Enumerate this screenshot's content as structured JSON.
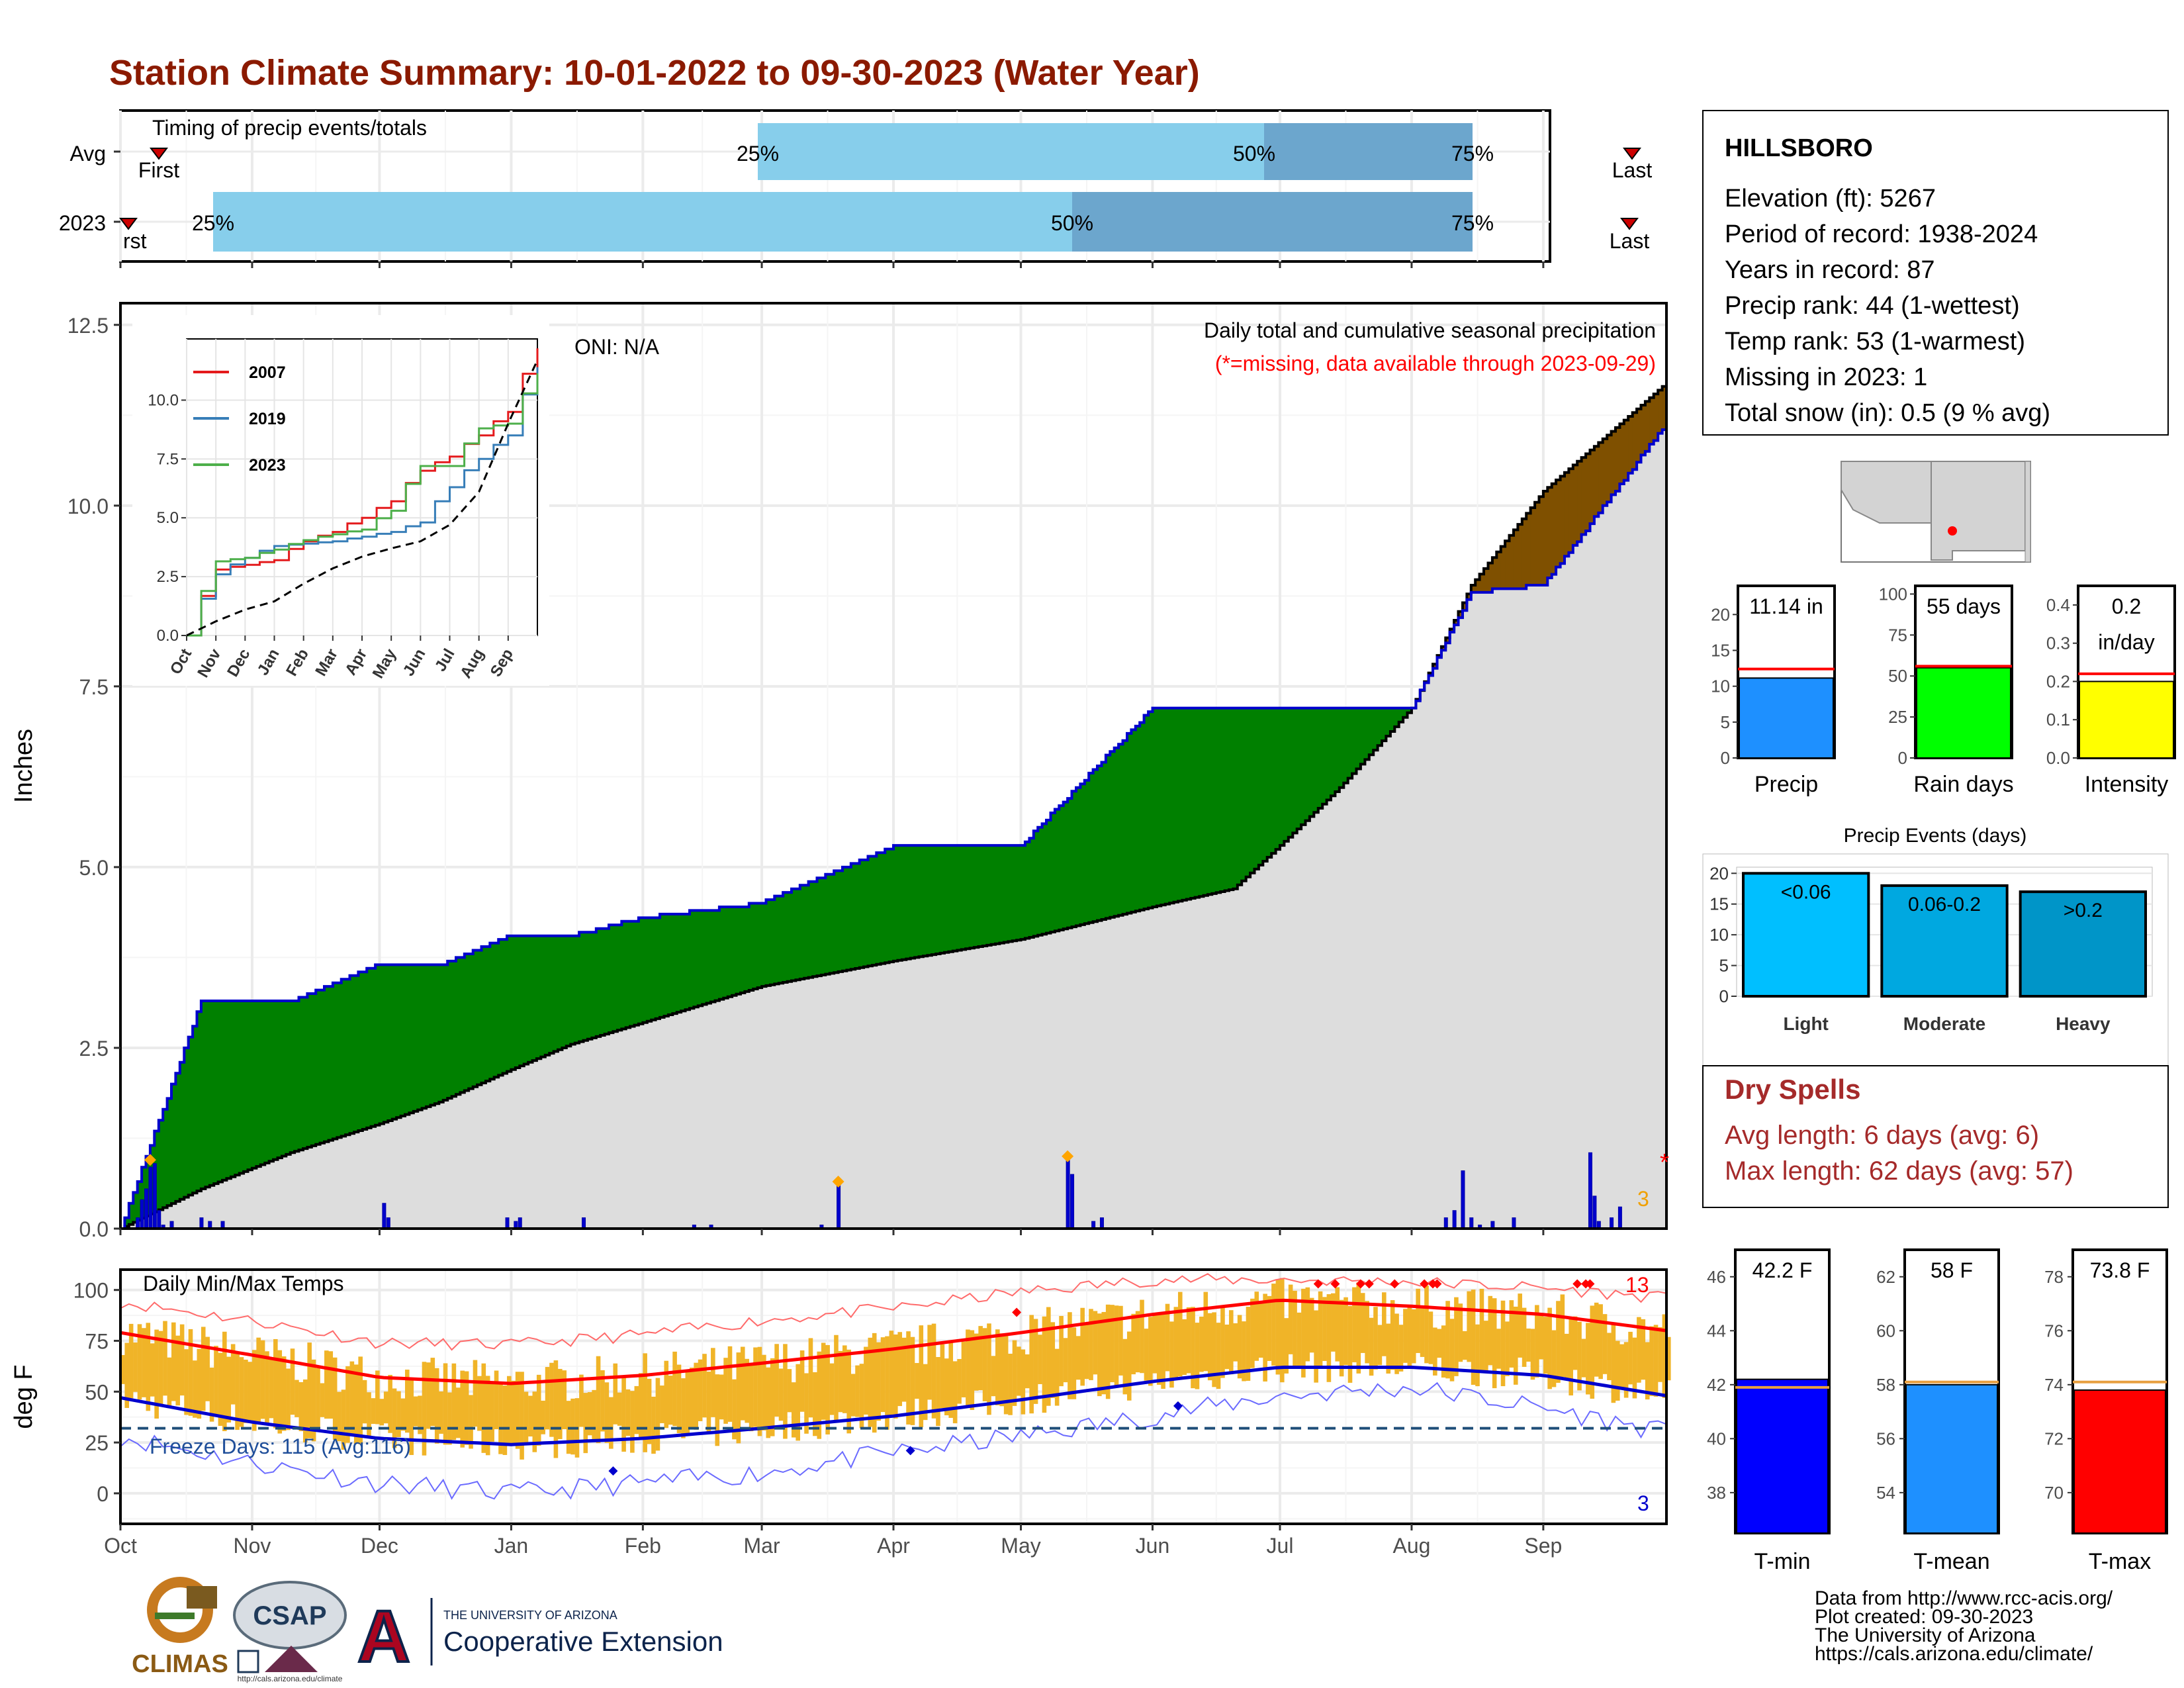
{
  "title": "Station Climate Summary: 10-01-2022 to 09-30-2023 (Water Year)",
  "colors": {
    "title": "#8B1A00",
    "lightblue": "#87CEEB",
    "midblue": "#6CA6CD",
    "green": "#008000",
    "brown": "#7F5000",
    "gray_fill": "#DDDDDD",
    "navy": "#0000CD",
    "gold": "#F0B428",
    "red": "#FF0000",
    "lime": "#00FF00",
    "yellow": "#FFFF00",
    "dodger": "#1E90FF",
    "deepsky": "#00BFFF",
    "darkred": "#A52A2A"
  },
  "timing": {
    "label": "Timing of precip events/totals",
    "rows": [
      "Avg",
      "2023"
    ],
    "first_label": "First",
    "last_label": "Last",
    "first_label_cut": "rst",
    "pct_labels": [
      "25%",
      "50%",
      "75%"
    ]
  },
  "months": [
    "Oct",
    "Nov",
    "Dec",
    "Jan",
    "Feb",
    "Mar",
    "Apr",
    "May",
    "Jun",
    "Jul",
    "Aug",
    "Sep"
  ],
  "precip": {
    "ylabel": "Inches",
    "yticks": [
      "0.0",
      "2.5",
      "5.0",
      "7.5",
      "10.0",
      "12.5"
    ],
    "ylim": [
      0,
      12.8
    ],
    "note1": "Daily total and cumulative seasonal precipitation",
    "note2": "(*=missing, data available through 2023-09-29)",
    "oni": "ONI: N/A",
    "missing_mark": "*",
    "event_count": "3"
  },
  "temps": {
    "ylabel": "deg F",
    "label": "Daily Min/Max Temps",
    "yticks": [
      "0",
      "25",
      "50",
      "75",
      "100"
    ],
    "ylim": [
      -15,
      110
    ],
    "freeze": "Freeze Days: 115 (Avg:116)",
    "max_count": "13",
    "min_count": "3"
  },
  "inset": {
    "yticks": [
      "0.0",
      "2.5",
      "5.0",
      "7.5",
      "10.0"
    ],
    "months": [
      "Oct",
      "Nov",
      "Dec",
      "Jan",
      "Feb",
      "Mar",
      "Apr",
      "May",
      "Jun",
      "Jul",
      "Aug",
      "Sep"
    ],
    "legend": [
      "2007",
      "2019",
      "2023"
    ],
    "colors": [
      "#E41A1C",
      "#377EB8",
      "#4DAF4A"
    ]
  },
  "station": {
    "name": "HILLSBORO",
    "lines": [
      "Elevation (ft): 5267",
      "Period of record: 1938-2024",
      "Years in record: 87",
      "Precip rank: 44 (1-wettest)",
      "Temp rank: 53 (1-warmest)",
      "Missing in 2023: 1",
      "Total snow (in): 0.5 (9 % avg)"
    ]
  },
  "minibars": [
    {
      "label": "Precip",
      "value_label": "11.14 in",
      "yticks": [
        "0",
        "5",
        "10",
        "15",
        "20"
      ]
    },
    {
      "label": "Rain days",
      "value_label": "55 days",
      "yticks": [
        "0",
        "25",
        "50",
        "75",
        "100"
      ]
    },
    {
      "label": "Intensity",
      "value_label": "0.2",
      "value_label2": "in/day",
      "yticks": [
        "0.0",
        "0.1",
        "0.2",
        "0.3",
        "0.4"
      ]
    }
  ],
  "events": {
    "title": "Precip Events (days)",
    "categories": [
      "Light",
      "Moderate",
      "Heavy"
    ],
    "bar_labels": [
      "<0.06",
      "0.06-0.2",
      ">0.2"
    ],
    "yticks": [
      "0",
      "5",
      "10",
      "15",
      "20"
    ]
  },
  "dry": {
    "title": "Dry Spells",
    "avg": "Avg length: 6 days (avg: 6)",
    "max": "Max length: 62 days (avg: 57)"
  },
  "tbars": [
    {
      "label": "T-min",
      "value_label": "42.2 F",
      "yticks": [
        "38",
        "40",
        "42",
        "44",
        "46"
      ]
    },
    {
      "label": "T-mean",
      "value_label": "58 F",
      "yticks": [
        "54",
        "56",
        "58",
        "60",
        "62"
      ]
    },
    {
      "label": "T-max",
      "value_label": "73.8 F",
      "yticks": [
        "70",
        "72",
        "74",
        "76",
        "78"
      ]
    }
  ],
  "credits": [
    "Data from http://www.rcc-acis.org/",
    "Plot created: 09-30-2023",
    "The University of Arizona",
    "https://cals.arizona.edu/climate/"
  ],
  "logos": {
    "climas": "CLIMAS",
    "csap": "CSAP",
    "csap_url": "http://cals.arizona.edu/climate",
    "ua_small": "THE UNIVERSITY OF ARIZONA",
    "ua_big": "Cooperative Extension",
    "ua_letter": "A"
  },
  "chart_data": [
    {
      "type": "line",
      "title": "Daily total and cumulative seasonal precipitation",
      "ylabel": "Inches",
      "ylim": [
        0,
        12.8
      ],
      "x": [
        "2022-10-01",
        "2022-10-20",
        "2022-11-10",
        "2022-12-01",
        "2022-12-15",
        "2023-01-01",
        "2023-01-15",
        "2023-02-01",
        "2023-03-01",
        "2023-04-01",
        "2023-05-01",
        "2023-06-01",
        "2023-06-20",
        "2023-07-01",
        "2023-07-15",
        "2023-08-01",
        "2023-08-15",
        "2023-09-01",
        "2023-09-30"
      ],
      "series": [
        {
          "name": "avg",
          "values": [
            0,
            0.55,
            1.05,
            1.45,
            1.75,
            2.2,
            2.55,
            2.85,
            3.35,
            3.7,
            4.0,
            4.45,
            4.7,
            5.3,
            6.1,
            7.2,
            8.9,
            10.2,
            11.7
          ]
        },
        {
          "name": "2023",
          "values": [
            0,
            3.15,
            3.15,
            3.65,
            3.65,
            4.05,
            4.05,
            4.3,
            4.5,
            5.3,
            5.3,
            7.2,
            7.2,
            7.2,
            7.2,
            7.2,
            8.8,
            8.9,
            11.14
          ]
        }
      ]
    },
    {
      "type": "bar",
      "title": "Daily precipitation",
      "x": [
        "2022-10-05",
        "2022-10-06",
        "2022-10-07",
        "2022-10-08",
        "2022-10-09",
        "2022-10-10",
        "2022-10-11",
        "2022-10-13",
        "2022-10-20",
        "2022-10-22",
        "2022-10-25",
        "2022-12-02",
        "2022-12-03",
        "2022-12-31",
        "2023-01-02",
        "2023-01-03",
        "2023-01-18",
        "2023-02-13",
        "2023-02-17",
        "2023-03-15",
        "2023-03-19",
        "2023-05-12",
        "2023-05-13",
        "2023-05-18",
        "2023-05-20",
        "2023-08-09",
        "2023-08-11",
        "2023-08-13",
        "2023-08-15",
        "2023-08-17",
        "2023-08-20",
        "2023-08-25",
        "2023-09-12",
        "2023-09-13",
        "2023-09-14",
        "2023-09-17",
        "2023-09-19"
      ],
      "values": [
        0.15,
        0.4,
        0.55,
        0.85,
        0.9,
        0.25,
        0.05,
        0.1,
        0.15,
        0.1,
        0.1,
        0.35,
        0.15,
        0.15,
        0.1,
        0.15,
        0.15,
        0.05,
        0.05,
        0.05,
        0.6,
        0.95,
        0.75,
        0.1,
        0.15,
        0.15,
        0.25,
        0.8,
        0.15,
        0.05,
        0.1,
        0.15,
        1.05,
        0.45,
        0.1,
        0.15,
        0.3
      ]
    },
    {
      "type": "line",
      "title": "Daily Min/Max Temps",
      "ylabel": "deg F",
      "ylim": [
        -15,
        110
      ],
      "x": [
        "2022-10-01",
        "2022-11-01",
        "2022-12-01",
        "2023-01-01",
        "2023-02-01",
        "2023-03-01",
        "2023-04-01",
        "2023-05-01",
        "2023-06-01",
        "2023-07-01",
        "2023-08-01",
        "2023-09-01",
        "2023-09-30"
      ],
      "series": [
        {
          "name": "avg max",
          "values": [
            79,
            68,
            57,
            54,
            58,
            64,
            71,
            79,
            88,
            95,
            92,
            88,
            80
          ]
        },
        {
          "name": "avg min",
          "values": [
            47,
            35,
            27,
            24,
            27,
            32,
            38,
            46,
            55,
            62,
            62,
            58,
            48
          ]
        },
        {
          "name": "record max",
          "values": [
            94,
            85,
            74,
            73,
            78,
            85,
            91,
            99,
            105,
            105,
            104,
            101,
            96
          ]
        },
        {
          "name": "record min",
          "values": [
            28,
            15,
            5,
            0,
            5,
            10,
            20,
            28,
            38,
            48,
            52,
            42,
            30
          ]
        }
      ]
    },
    {
      "type": "line",
      "title": "Cumulative precipitation comparison",
      "x": [
        "Oct",
        "Nov",
        "Dec",
        "Jan",
        "Feb",
        "Mar",
        "Apr",
        "May",
        "Jun",
        "Jul",
        "Aug",
        "Sep",
        "end"
      ],
      "series": [
        {
          "name": "2007",
          "values": [
            0,
            2.8,
            3.0,
            3.2,
            4.0,
            4.4,
            5.0,
            5.7,
            7.0,
            7.6,
            8.5,
            9.5,
            12.2
          ]
        },
        {
          "name": "2019",
          "values": [
            0,
            2.6,
            3.3,
            3.8,
            3.9,
            4.0,
            4.2,
            4.4,
            4.8,
            6.3,
            7.5,
            8.5,
            11.4
          ]
        },
        {
          "name": "2023",
          "values": [
            0,
            3.15,
            3.3,
            3.65,
            4.05,
            4.3,
            4.5,
            5.3,
            7.2,
            7.2,
            8.8,
            9.0,
            11.14
          ]
        },
        {
          "name": "avg",
          "values": [
            0,
            0.6,
            1.1,
            1.45,
            2.2,
            2.85,
            3.35,
            3.7,
            4.0,
            4.7,
            6.1,
            9.0,
            11.7
          ]
        }
      ]
    },
    {
      "type": "bar",
      "title": "Precip",
      "categories": [
        "Precip"
      ],
      "values": [
        11.14
      ],
      "average": 12.4,
      "ylim": [
        0,
        24
      ]
    },
    {
      "type": "bar",
      "title": "Rain days",
      "categories": [
        "Rain days"
      ],
      "values": [
        55
      ],
      "average": 56,
      "ylim": [
        0,
        105
      ]
    },
    {
      "type": "bar",
      "title": "Intensity",
      "categories": [
        "Intensity"
      ],
      "values": [
        0.2
      ],
      "average": 0.22,
      "ylim": [
        0,
        0.45
      ]
    },
    {
      "type": "bar",
      "title": "Precip Events (days)",
      "categories": [
        "Light",
        "Moderate",
        "Heavy"
      ],
      "values": [
        20,
        18,
        17
      ],
      "ylim": [
        0,
        21
      ]
    },
    {
      "type": "bar",
      "title": "T-min",
      "categories": [
        "T-min"
      ],
      "values": [
        42.2
      ],
      "average": 41.9,
      "ylim": [
        36.5,
        47
      ]
    },
    {
      "type": "bar",
      "title": "T-mean",
      "categories": [
        "T-mean"
      ],
      "values": [
        58
      ],
      "average": 58.1,
      "ylim": [
        52.5,
        63
      ]
    },
    {
      "type": "bar",
      "title": "T-max",
      "categories": [
        "T-max"
      ],
      "values": [
        73.8
      ],
      "average": 74.1,
      "ylim": [
        68.5,
        79
      ]
    }
  ]
}
